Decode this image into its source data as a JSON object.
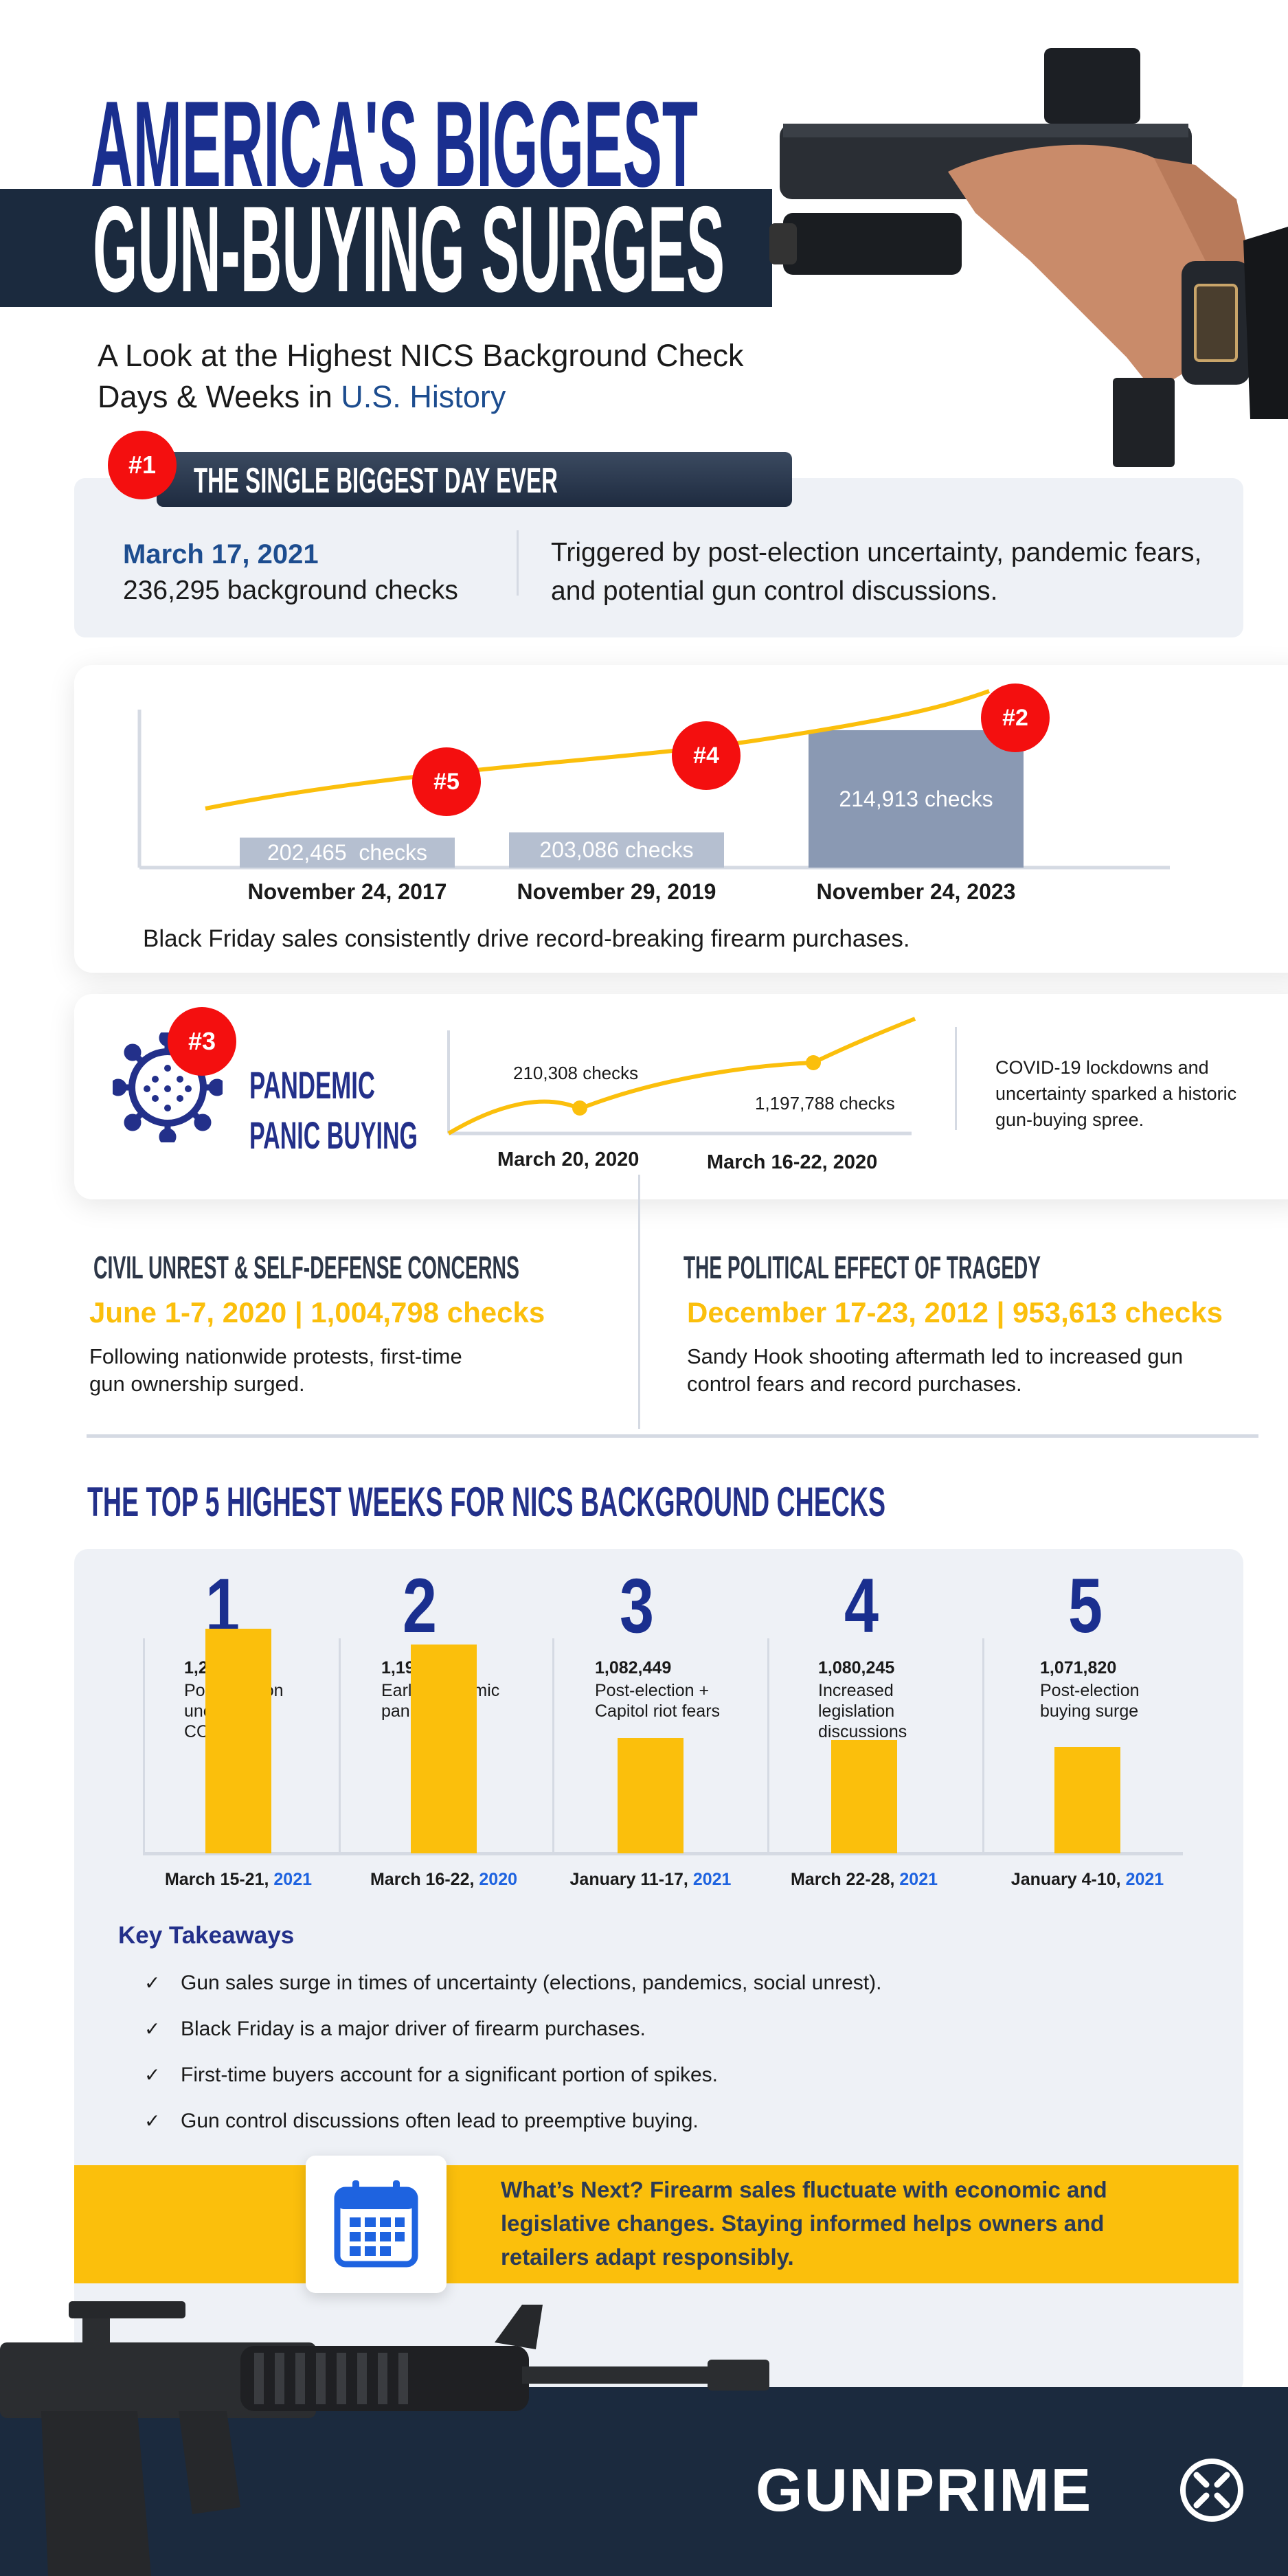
{
  "colors": {
    "navy": "#1a2f8f",
    "dark_band": "#1b2a3e",
    "accent_yellow": "#fbbf0c",
    "badge_red": "#f40f0f",
    "accent_blue": "#1e63e0",
    "panel_gray": "#eef1f6"
  },
  "header": {
    "title_line1": "AMERICA'S BIGGEST",
    "title_line2": "GUN-BUYING SURGES",
    "subtitle_line1": "A Look at the Highest NICS Background Check",
    "subtitle_line2_plain": "Days & Weeks in ",
    "subtitle_line2_accent": "U.S. History"
  },
  "biggest_day": {
    "rank": "#1",
    "heading": "THE SINGLE BIGGEST DAY EVER",
    "date": "March 17, 2021",
    "checks": "236,295 background checks",
    "description": "Triggered by post-election uncertainty, pandemic fears, and potential gun control discussions."
  },
  "black_friday": {
    "caption": "Black Friday sales consistently drive record-breaking firearm purchases.",
    "items": [
      {
        "rank": "#5",
        "value": 202465,
        "label": "202,465  checks",
        "date": "November 24, 2017"
      },
      {
        "rank": "#4",
        "value": 203086,
        "label": "203,086 checks",
        "date": "November 29, 2019"
      },
      {
        "rank": "#2",
        "value": 214913,
        "label": "214,913 checks",
        "date": "November 24, 2023"
      }
    ]
  },
  "pandemic": {
    "rank": "#3",
    "title_line1": "PANDEMIC",
    "title_line2": "PANIC BUYING",
    "point1_label": "210,308 checks",
    "point1_date": "March 20, 2020",
    "point2_label": "1,197,788 checks",
    "point2_date": "March 16-22, 2020",
    "description": "COVID-19 lockdowns and uncertainty sparked a historic gun-buying spree."
  },
  "civil_unrest": {
    "heading": "CIVIL UNREST & SELF-DEFENSE CONCERNS",
    "stat": "June 1-7, 2020 | 1,004,798 checks",
    "description": "Following nationwide protests, first-time gun ownership surged."
  },
  "tragedy": {
    "heading": "THE POLITICAL EFFECT OF TRAGEDY",
    "stat": "December 17-23, 2012 | 953,613 checks",
    "description": "Sandy Hook shooting aftermath led to increased gun control fears and record purchases."
  },
  "top5": {
    "heading": "THE TOP 5 HIGHEST WEEKS FOR NICS BACKGROUND CHECKS",
    "items": [
      {
        "rank": "1",
        "value": 1218002,
        "value_label": "1,218,002",
        "reason": "Post-election uncertainty, COVID-19",
        "date": "March 15-21, ",
        "year": "2021"
      },
      {
        "rank": "2",
        "value": 1197788,
        "value_label": "1,197,788",
        "reason": "Early pandemic panic buying",
        "date": "March 16-22, ",
        "year": "2020"
      },
      {
        "rank": "3",
        "value": 1082449,
        "value_label": "1,082,449",
        "reason": "Post-election + Capitol riot fears",
        "date": "January 11-17, ",
        "year": "2021"
      },
      {
        "rank": "4",
        "value": 1080245,
        "value_label": "1,080,245",
        "reason": "Increased legislation discussions",
        "date": "March 22-28, ",
        "year": "2021"
      },
      {
        "rank": "5",
        "value": 1071820,
        "value_label": "1,071,820",
        "reason": "Post-election buying surge",
        "date": "January 4-10, ",
        "year": "2021"
      }
    ]
  },
  "takeaways": {
    "heading": "Key Takeaways",
    "items": [
      "Gun sales surge in times of uncertainty (elections, pandemics, social unrest).",
      "Black Friday is a major driver of firearm purchases.",
      "First-time buyers account for a significant portion of spikes.",
      "Gun control discussions often lead to preemptive buying."
    ]
  },
  "whats_next": {
    "text": "What’s Next? Firearm sales fluctuate with economic and legislative changes. Staying informed helps owners and retailers adapt responsibly."
  },
  "brand": {
    "logo": "GUNPRIME"
  }
}
